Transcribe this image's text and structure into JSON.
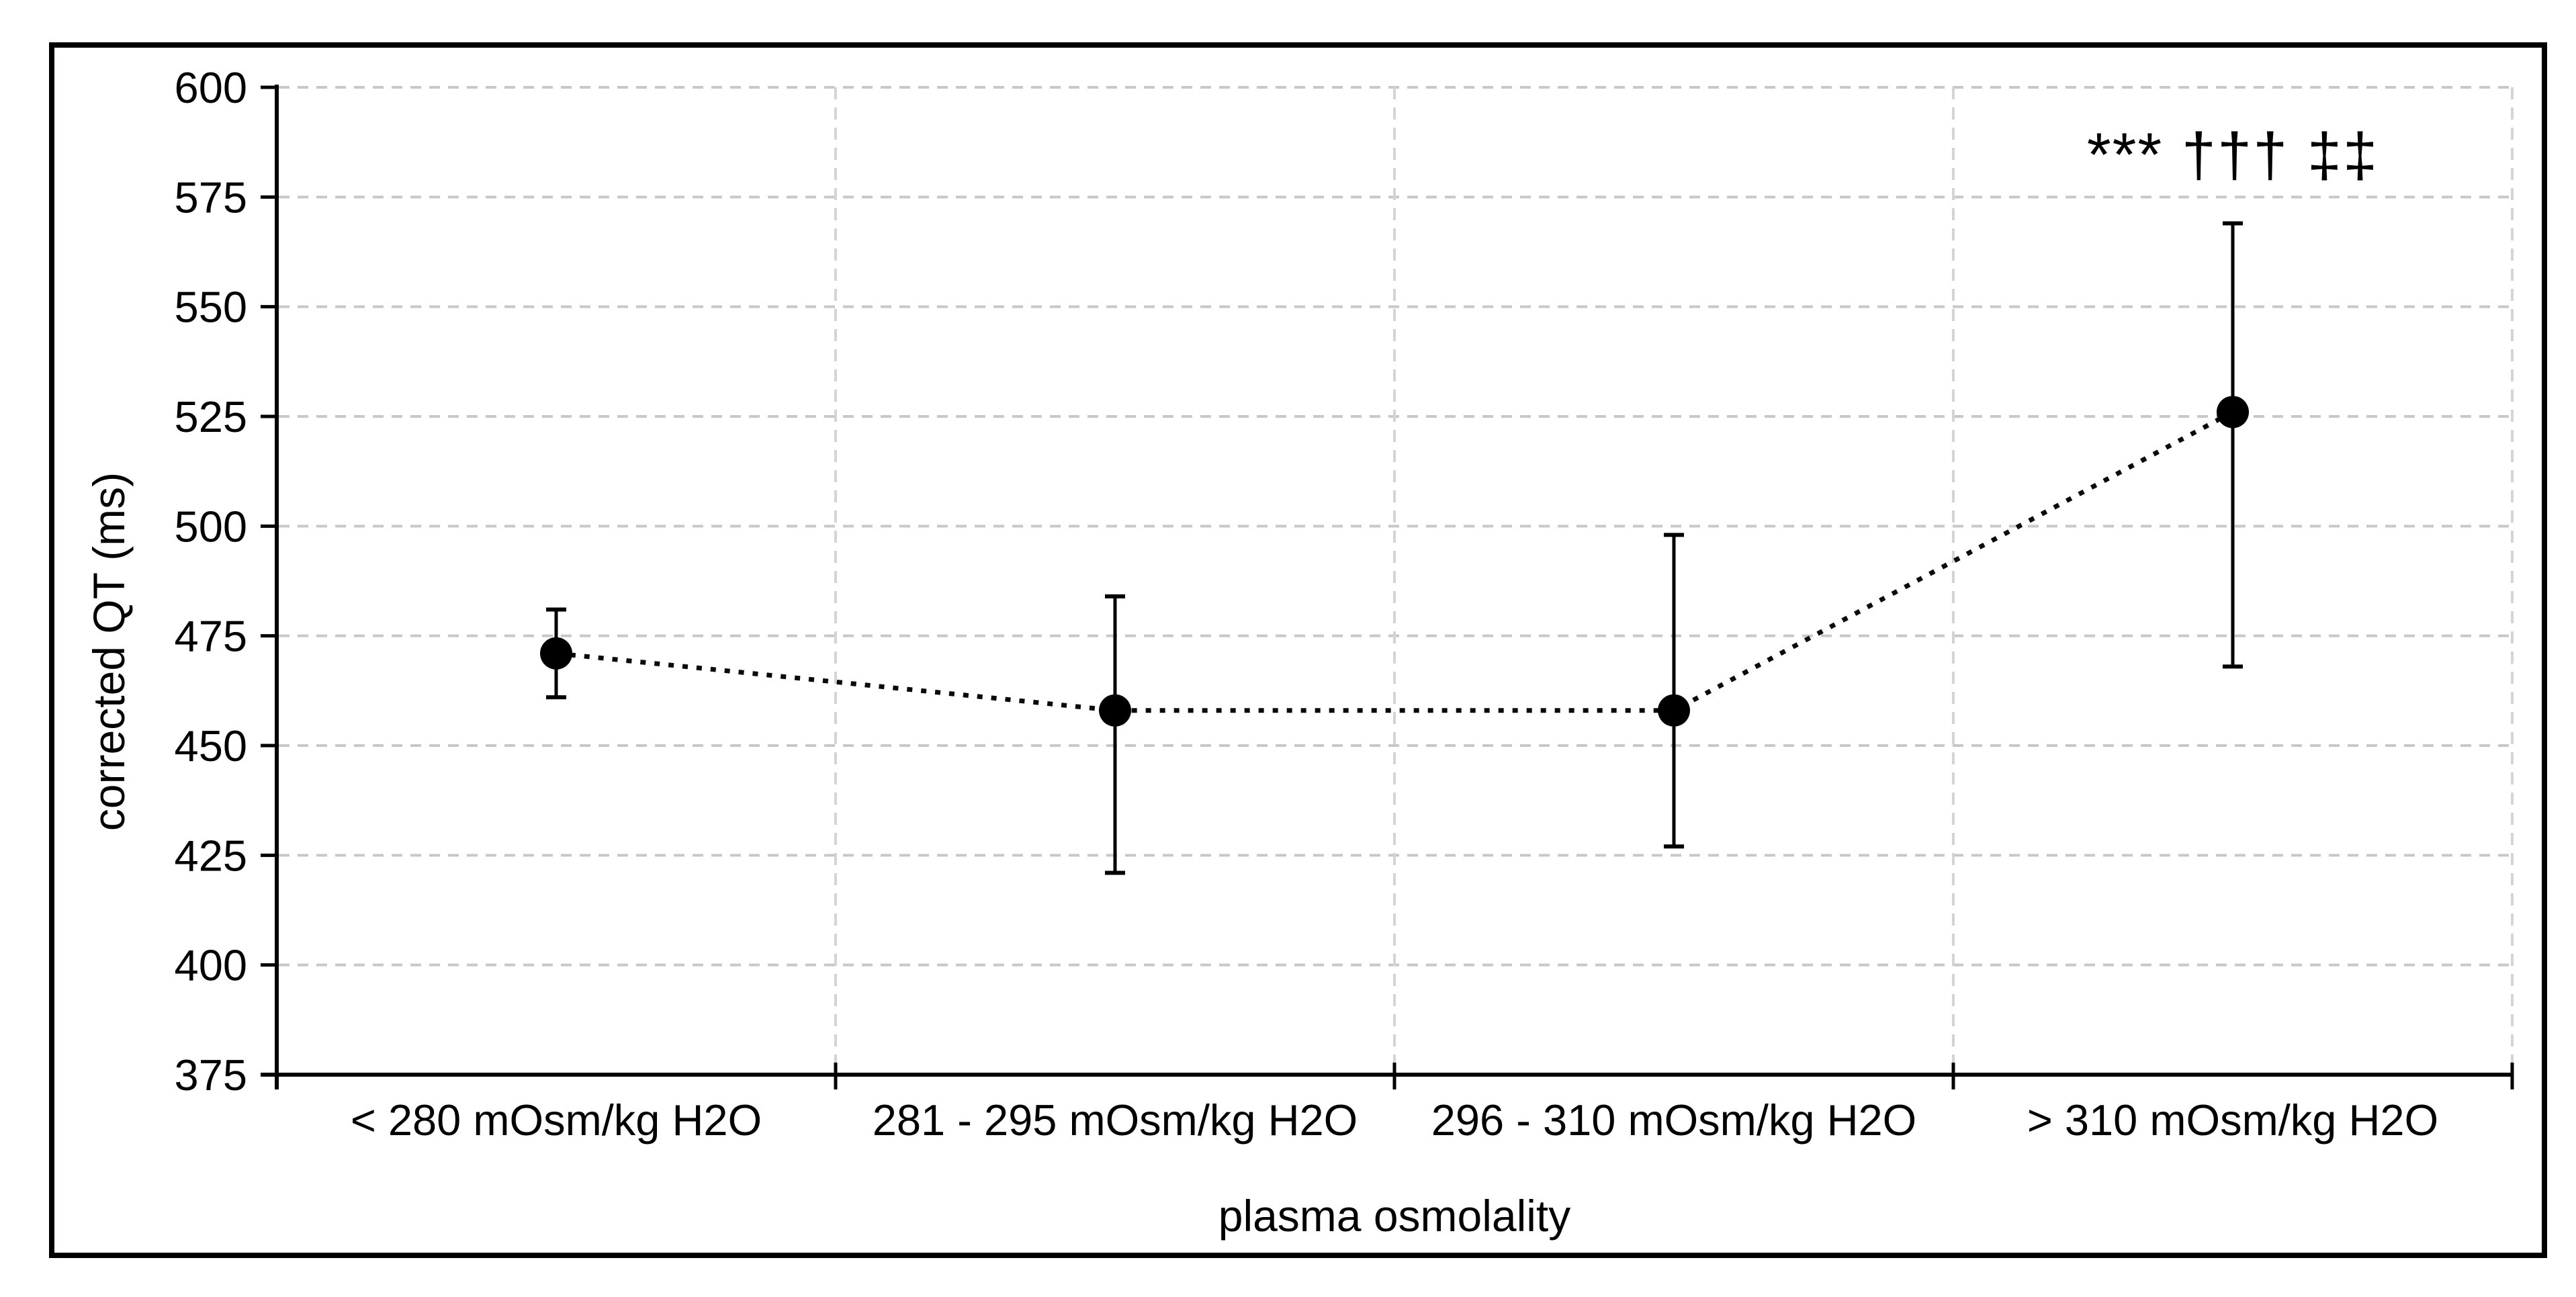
{
  "figure": {
    "background": "#ffffff",
    "frame_color": "#000000",
    "axis_color": "#000000",
    "grid_color": "#c8c8c8",
    "separator_color": "#d4d4d4",
    "marker_color": "#000000",
    "line_color": "#0a0a0a"
  },
  "chart_data": {
    "type": "line",
    "title": "",
    "xlabel": "plasma osmolality",
    "ylabel": "corrected QT (ms)",
    "ylim": [
      375,
      600
    ],
    "ytick_step": 25,
    "yticks": [
      375,
      400,
      425,
      450,
      475,
      500,
      525,
      550,
      575,
      600
    ],
    "categories": [
      "< 280 mOsm/kg H2O",
      "281 - 295 mOsm/kg H2O",
      "296 - 310 mOsm/kg H2O",
      "> 310 mOsm/kg H2O"
    ],
    "series": [
      {
        "name": "corrected QT (ms)",
        "marker": "filled-circle",
        "line_style": "dotted",
        "color": "#000000",
        "values": [
          471,
          458,
          458,
          526
        ],
        "error_low": [
          461,
          421,
          427,
          468
        ],
        "error_high": [
          481,
          484,
          498,
          569
        ]
      }
    ],
    "annotation": {
      "text": "*** ††† ‡‡",
      "meaning": "significance-markers",
      "category_index": 3,
      "y": 583
    },
    "grid": {
      "horizontal": true,
      "vertical_category_separators": true,
      "style": "dashed",
      "legend": "none"
    }
  }
}
